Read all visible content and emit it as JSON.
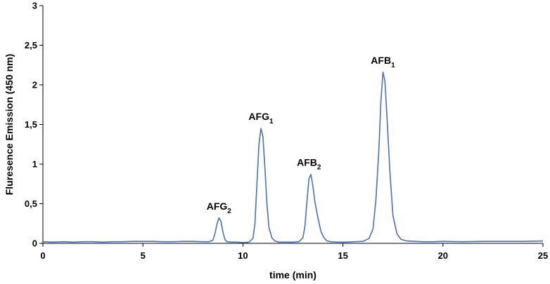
{
  "chart_data": {
    "type": "line",
    "title": "",
    "xlabel": "time (min)",
    "ylabel": "Fluresence  Emission (450 nm)",
    "xlim": [
      0,
      25
    ],
    "ylim": [
      0,
      3
    ],
    "x_ticks": [
      {
        "value": 0,
        "label": "0"
      },
      {
        "value": 5,
        "label": "5"
      },
      {
        "value": 10,
        "label": "10"
      },
      {
        "value": 15,
        "label": "15"
      },
      {
        "value": 20,
        "label": "20"
      },
      {
        "value": 25,
        "label": "25"
      }
    ],
    "y_ticks": [
      {
        "value": 0,
        "label": "0"
      },
      {
        "value": 0.5,
        "label": "0,5"
      },
      {
        "value": 1,
        "label": "1"
      },
      {
        "value": 1.5,
        "label": "1,5"
      },
      {
        "value": 2,
        "label": "2"
      },
      {
        "value": 2.5,
        "label": "2,5"
      },
      {
        "value": 3,
        "label": "3"
      }
    ],
    "grid": false,
    "legend": "none",
    "line_color": "#4a6fc4",
    "series": [
      {
        "x": [
          0,
          0.5,
          1,
          1.5,
          2,
          2.5,
          3,
          3.5,
          4,
          4.5,
          5,
          5.5,
          6,
          6.5,
          7,
          7.5,
          8,
          8.3,
          8.5,
          8.6,
          8.7,
          8.8,
          8.9,
          9.0,
          9.1,
          9.2,
          9.4,
          9.7,
          10,
          10.3,
          10.5,
          10.6,
          10.7,
          10.8,
          10.9,
          11.0,
          11.1,
          11.2,
          11.3,
          11.45,
          11.6,
          11.8,
          12.1,
          12.5,
          12.8,
          13.0,
          13.1,
          13.2,
          13.3,
          13.4,
          13.5,
          13.6,
          13.75,
          13.9,
          14.05,
          14.2,
          14.4,
          14.7,
          15.1,
          15.6,
          16.0,
          16.3,
          16.5,
          16.65,
          16.8,
          16.9,
          17.0,
          17.1,
          17.2,
          17.35,
          17.5,
          17.7,
          17.9,
          18.2,
          18.6,
          19.0,
          19.5,
          20,
          21,
          22,
          23,
          24,
          25
        ],
        "y": [
          0.02,
          0.015,
          0.02,
          0.015,
          0.02,
          0.02,
          0.015,
          0.02,
          0.02,
          0.025,
          0.025,
          0.025,
          0.02,
          0.02,
          0.025,
          0.025,
          0.02,
          0.02,
          0.04,
          0.12,
          0.24,
          0.32,
          0.28,
          0.14,
          0.05,
          0.02,
          0.015,
          0.015,
          0.01,
          0.015,
          0.06,
          0.25,
          0.75,
          1.25,
          1.45,
          1.35,
          0.95,
          0.5,
          0.2,
          0.07,
          0.03,
          0.015,
          0.015,
          0.015,
          0.02,
          0.07,
          0.22,
          0.52,
          0.82,
          0.87,
          0.72,
          0.52,
          0.32,
          0.15,
          0.07,
          0.03,
          0.02,
          0.015,
          0.015,
          0.02,
          0.025,
          0.06,
          0.18,
          0.55,
          1.2,
          1.8,
          2.16,
          2.05,
          1.6,
          0.9,
          0.35,
          0.12,
          0.05,
          0.03,
          0.025,
          0.02,
          0.02,
          0.025,
          0.02,
          0.025,
          0.025,
          0.025,
          0.03
        ]
      }
    ],
    "annotations": [
      {
        "base": "AFG",
        "sub": "2",
        "x": 8.8,
        "y": 0.32
      },
      {
        "base": "AFG",
        "sub": "1",
        "x": 10.9,
        "y": 1.45
      },
      {
        "base": "AFB",
        "sub": "2",
        "x": 13.3,
        "y": 0.87
      },
      {
        "base": "AFB",
        "sub": "1",
        "x": 17.0,
        "y": 2.16
      }
    ]
  }
}
